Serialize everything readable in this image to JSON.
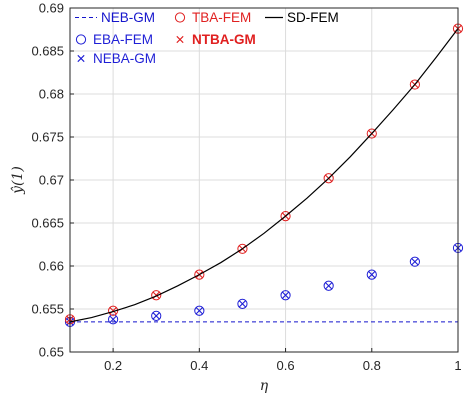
{
  "chart_data": {
    "type": "line",
    "title": "",
    "xlabel": "η",
    "ylabel": "ŷ(1)",
    "xlim": [
      0.1,
      1.0
    ],
    "ylim": [
      0.65,
      0.69
    ],
    "xticks": [
      0.2,
      0.4,
      0.6,
      0.8,
      1.0
    ],
    "xtick_labels": [
      "0.2",
      "0.4",
      "0.6",
      "0.8",
      "1"
    ],
    "yticks": [
      0.65,
      0.655,
      0.66,
      0.665,
      0.67,
      0.675,
      0.68,
      0.685,
      0.69
    ],
    "ytick_labels": [
      "0.65",
      "0.655",
      "0.66",
      "0.665",
      "0.67",
      "0.675",
      "0.68",
      "0.685",
      "0.69"
    ],
    "grid": true,
    "legend_position": "top-left",
    "x": [
      0.1,
      0.2,
      0.3,
      0.4,
      0.5,
      0.6,
      0.7,
      0.8,
      0.9,
      1.0
    ],
    "series": [
      {
        "name": "NEB-GM",
        "style": "dashed-line",
        "color": "#1515cc",
        "x": [
          0.1,
          1.0
        ],
        "values": [
          0.6535,
          0.6535
        ]
      },
      {
        "name": "EBA-FEM",
        "style": "circle",
        "color": "#1f1fd6",
        "values": [
          0.6535,
          0.6538,
          0.6542,
          0.6548,
          0.6556,
          0.6566,
          0.6577,
          0.659,
          0.6605,
          0.6621
        ]
      },
      {
        "name": "NEBA-GM",
        "style": "cross",
        "color": "#1f1fd6",
        "values": [
          0.6535,
          0.6538,
          0.6542,
          0.6548,
          0.6556,
          0.6566,
          0.6577,
          0.659,
          0.6605,
          0.6621
        ]
      },
      {
        "name": "TBA-FEM",
        "style": "circle",
        "color": "#e02020",
        "values": [
          0.6538,
          0.6548,
          0.6566,
          0.659,
          0.662,
          0.6658,
          0.6702,
          0.6754,
          0.6811,
          0.6876
        ]
      },
      {
        "name": "NTBA-GM",
        "style": "cross",
        "color": "#e02020",
        "values": [
          0.6538,
          0.6548,
          0.6566,
          0.659,
          0.662,
          0.6658,
          0.6702,
          0.6754,
          0.6811,
          0.6876
        ]
      },
      {
        "name": "SD-FEM",
        "style": "solid-line",
        "color": "#000000",
        "x": [
          0.1,
          0.15,
          0.2,
          0.25,
          0.3,
          0.35,
          0.4,
          0.45,
          0.5,
          0.55,
          0.6,
          0.65,
          0.7,
          0.75,
          0.8,
          0.85,
          0.9,
          0.95,
          1.0
        ],
        "values": [
          0.6535,
          0.654,
          0.6547,
          0.6555,
          0.6565,
          0.6577,
          0.659,
          0.6604,
          0.662,
          0.6638,
          0.6658,
          0.6679,
          0.6702,
          0.6727,
          0.6754,
          0.6782,
          0.6811,
          0.6843,
          0.6876
        ]
      }
    ]
  }
}
